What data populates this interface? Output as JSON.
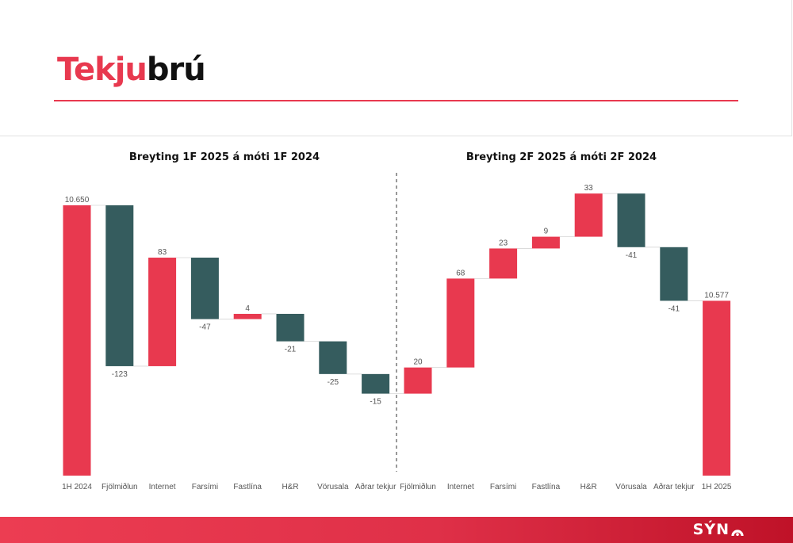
{
  "header": {
    "title_accent": "Tekju",
    "title_rest": "brú"
  },
  "brand": {
    "logo_text": "SÝN",
    "accent": "#e8394f",
    "negative": "#355c5e"
  },
  "chart_data": [
    {
      "type": "waterfall",
      "title": "Breyting 1F 2025 á móti 1F 2024",
      "start": {
        "label": "1H 2024",
        "value": 10650,
        "display": "10.650"
      },
      "steps": [
        {
          "label": "Fjölmiðlun",
          "value": -123,
          "display": "-123"
        },
        {
          "label": "Internet",
          "value": 83,
          "display": "83"
        },
        {
          "label": "Farsími",
          "value": -47,
          "display": "-47"
        },
        {
          "label": "Fastlína",
          "value": 4,
          "display": "4"
        },
        {
          "label": "H&R",
          "value": -21,
          "display": "-21"
        },
        {
          "label": "Vörusala",
          "value": -25,
          "display": "-25"
        },
        {
          "label": "Aðrar tekjur",
          "value": -15,
          "display": "-15"
        }
      ]
    },
    {
      "type": "waterfall",
      "title": "Breyting 2F 2025 á móti 2F 2024",
      "steps": [
        {
          "label": "Fjölmiðlun",
          "value": 20,
          "display": "20"
        },
        {
          "label": "Internet",
          "value": 68,
          "display": "68"
        },
        {
          "label": "Farsími",
          "value": 23,
          "display": "23"
        },
        {
          "label": "Fastlína",
          "value": 9,
          "display": "9"
        },
        {
          "label": "H&R",
          "value": 33,
          "display": "33"
        },
        {
          "label": "Vörusala",
          "value": -41,
          "display": "-41"
        },
        {
          "label": "Aðrar tekjur",
          "value": -41,
          "display": "-41"
        }
      ],
      "end": {
        "label": "1H 2025",
        "value": 10577,
        "display": "10.577"
      }
    }
  ]
}
